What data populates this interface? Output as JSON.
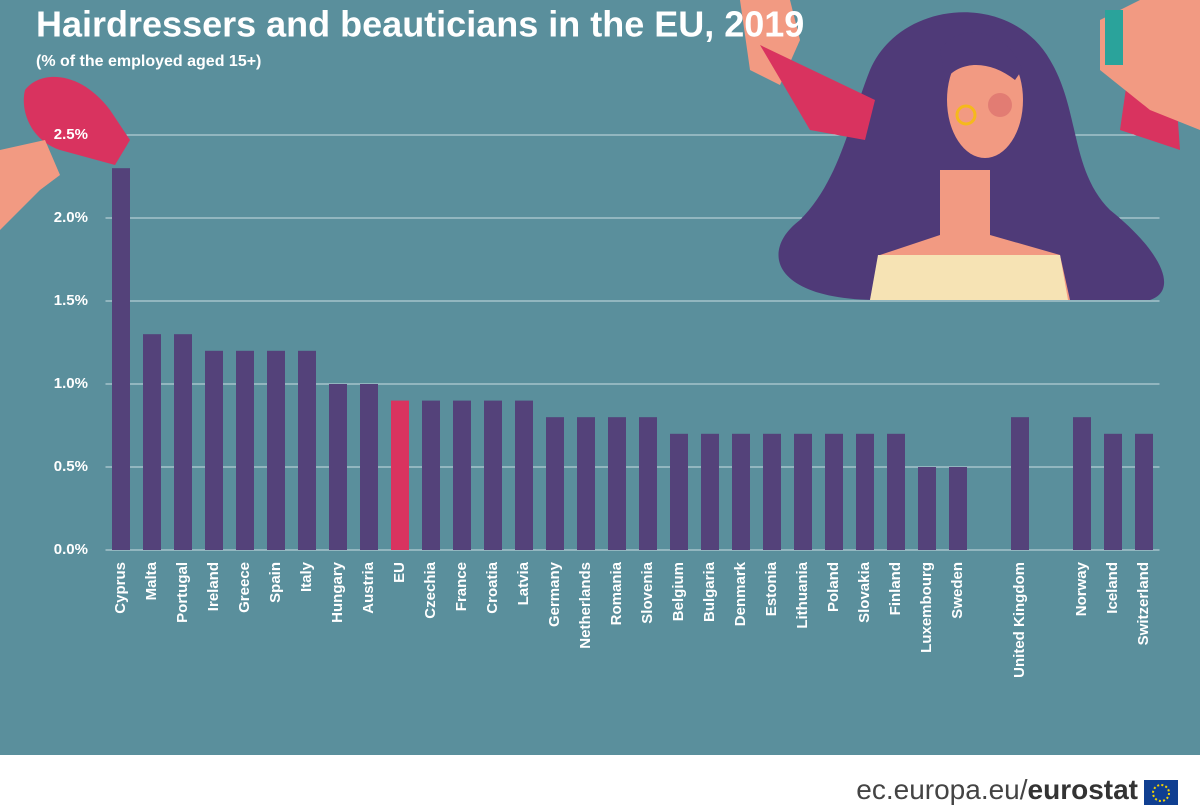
{
  "chart_data": {
    "type": "bar",
    "title": "Hairdressers and beauticians in the EU, 2019",
    "subtitle": "(% of the employed aged 15+)",
    "categories": [
      "Cyprus",
      "Malta",
      "Portugal",
      "Ireland",
      "Greece",
      "Spain",
      "Italy",
      "Hungary",
      "Austria",
      "EU",
      "Czechia",
      "France",
      "Croatia",
      "Latvia",
      "Germany",
      "Netherlands",
      "Romania",
      "Slovenia",
      "Belgium",
      "Bulgaria",
      "Denmark",
      "Estonia",
      "Lithuania",
      "Poland",
      "Slovakia",
      "Finland",
      "Luxembourg",
      "Sweden",
      null,
      "United Kingdom",
      null,
      "Norway",
      "Iceland",
      "Switzerland"
    ],
    "values": [
      2.3,
      1.3,
      1.3,
      1.2,
      1.2,
      1.2,
      1.2,
      1.0,
      1.0,
      0.9,
      0.9,
      0.9,
      0.9,
      0.9,
      0.8,
      0.8,
      0.8,
      0.8,
      0.7,
      0.7,
      0.7,
      0.7,
      0.7,
      0.7,
      0.7,
      0.7,
      0.5,
      0.5,
      null,
      0.8,
      null,
      0.8,
      0.7,
      0.7
    ],
    "color": "#54427a",
    "highlight": {
      "category": "EU",
      "color": "#d9335f"
    },
    "ylim": [
      0,
      2.5
    ],
    "yticks": [
      {
        "value": 0,
        "label": "0.0%"
      },
      {
        "value": 0.5,
        "label": "0.5%"
      },
      {
        "value": 1.0,
        "label": "1.0%"
      },
      {
        "value": 1.5,
        "label": "1.5%"
      },
      {
        "value": 2.0,
        "label": "2.0%"
      },
      {
        "value": 2.5,
        "label": "2.5%"
      }
    ],
    "grid": true
  },
  "footer": {
    "site": "ec.europa.eu/",
    "brand": "eurostat"
  }
}
